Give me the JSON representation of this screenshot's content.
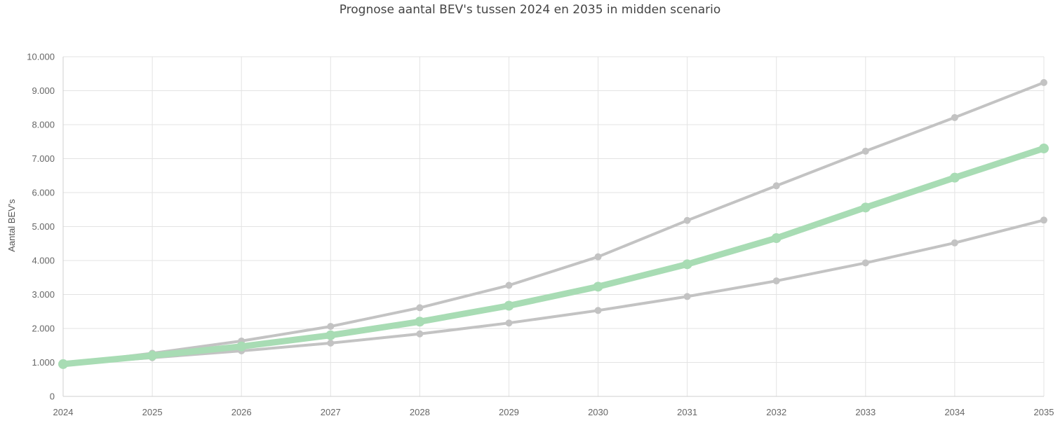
{
  "chart_data": {
    "type": "line",
    "title": "Prognose aantal BEV's tussen 2024 en 2035 in midden scenario",
    "xlabel": "",
    "ylabel": "Aantal BEV's",
    "x": [
      "2024",
      "2025",
      "2026",
      "2027",
      "2028",
      "2029",
      "2030",
      "2031",
      "2032",
      "2033",
      "2034",
      "2035"
    ],
    "ylim": [
      0,
      10000
    ],
    "yticks": [
      0,
      1000,
      2000,
      3000,
      4000,
      5000,
      6000,
      7000,
      8000,
      9000,
      10000
    ],
    "ytick_labels": [
      "0",
      "1.000",
      "2.000",
      "3.000",
      "4.000",
      "5.000",
      "6.000",
      "7.000",
      "8.000",
      "9.000",
      "10.000"
    ],
    "grid": true,
    "legend": "none",
    "series": [
      {
        "role": "upper",
        "color": "#c3c3c3",
        "values": [
          950,
          1270,
          1630,
          2060,
          2610,
          3270,
          4110,
          5180,
          6200,
          7220,
          8210,
          9240
        ]
      },
      {
        "role": "midden",
        "color": "#a8dcb4",
        "values": [
          950,
          1200,
          1470,
          1800,
          2200,
          2670,
          3230,
          3890,
          4660,
          5560,
          6440,
          7300
        ]
      },
      {
        "role": "lower",
        "color": "#c3c3c3",
        "values": [
          950,
          1140,
          1340,
          1570,
          1840,
          2160,
          2530,
          2940,
          3400,
          3930,
          4520,
          5190
        ]
      }
    ]
  }
}
